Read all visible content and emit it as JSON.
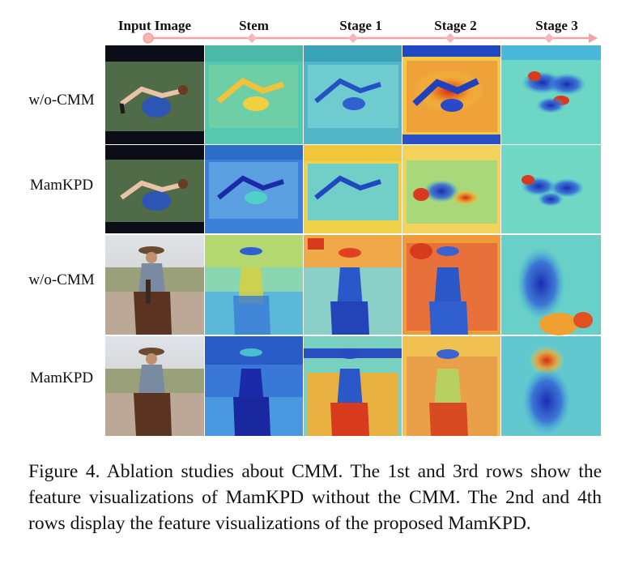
{
  "figure": {
    "columns": [
      "Input Image",
      "Stem",
      "Stage 1",
      "Stage 2",
      "Stage 3"
    ],
    "rows": [
      "w/o-CMM",
      "MamKPD",
      "w/o-CMM",
      "MamKPD"
    ],
    "colors": {
      "arrow": "#f4a3a3",
      "heat_low": "#1f3fb8",
      "heat_mid": "#3fc4c9",
      "heat_high": "#d83a1e",
      "image_border": "#ffffff"
    }
  },
  "caption": {
    "text": "Figure 4. Ablation studies about CMM. The 1st and 3rd rows show the feature visualizations of MamKPD without the CMM. The 2nd and 4th rows display the feature visualizations of the proposed MamKPD."
  }
}
